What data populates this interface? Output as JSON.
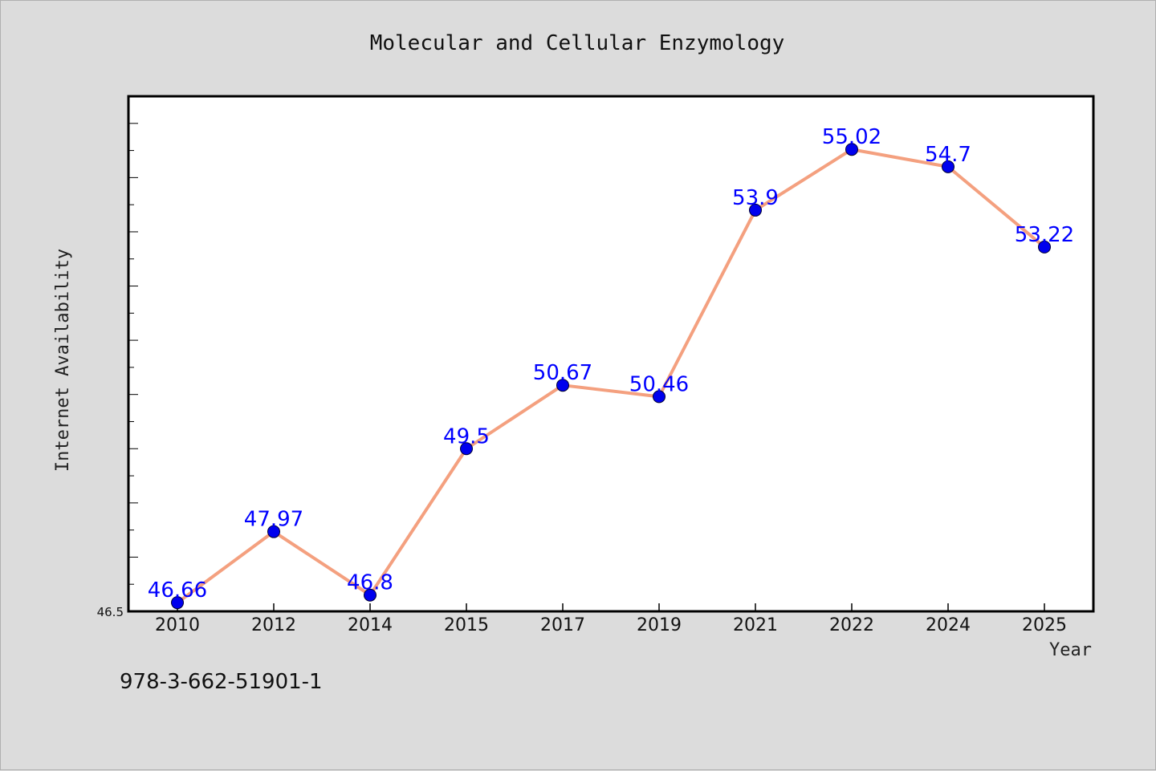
{
  "chart_data": {
    "type": "line",
    "title": "Molecular and Cellular Enzymology",
    "xlabel": "Year",
    "ylabel": "Internet Availability",
    "categories": [
      "2010",
      "2012",
      "2014",
      "2015",
      "2017",
      "2019",
      "2021",
      "2022",
      "2024",
      "2025"
    ],
    "series": [
      {
        "values": [
          46.66,
          47.97,
          46.8,
          49.5,
          50.67,
          50.46,
          53.9,
          55.02,
          54.7,
          53.22
        ],
        "labels": [
          "46.66",
          "47.97",
          "46.8",
          "49.5",
          "50.67",
          "50.46",
          "53.9",
          "55.02",
          "54.7",
          "53.22"
        ]
      }
    ],
    "ytick_labels": [
      "46.5"
    ],
    "ylim": [
      46.5,
      56.0
    ],
    "grid": false,
    "legend": "none",
    "colors": {
      "line": "#f4a07f",
      "marker": "#0000ee",
      "data_label": "#0000ff",
      "background": "#dcdcdc",
      "plot_background": "#ffffff"
    }
  },
  "footnote": "978-3-662-51901-1"
}
